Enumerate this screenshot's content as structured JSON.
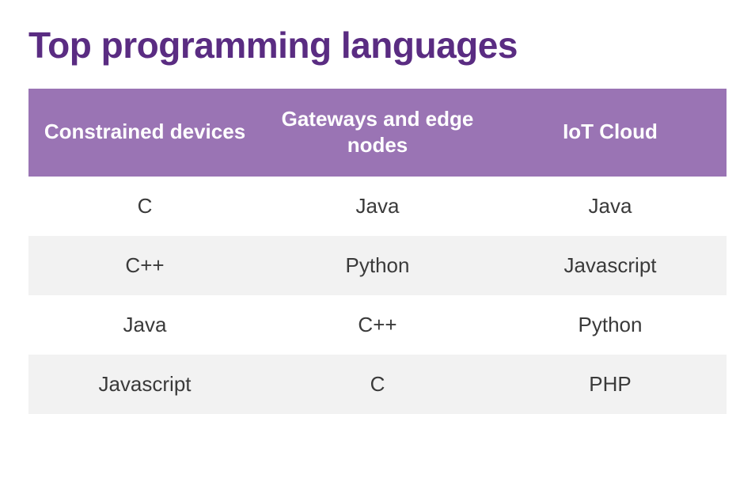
{
  "title": "Top programming languages",
  "table": {
    "type": "table",
    "header_bg": "#9a74b4",
    "header_text_color": "#ffffff",
    "row_bg_odd": "#ffffff",
    "row_bg_even": "#f2f2f2",
    "cell_text_color": "#3a3a3a",
    "title_color": "#5a2c82",
    "header_fontsize": 26,
    "cell_fontsize": 26,
    "title_fontsize": 46,
    "columns": [
      "Constrained devices",
      "Gateways and edge nodes",
      "IoT Cloud"
    ],
    "rows": [
      [
        "C",
        "Java",
        "Java"
      ],
      [
        "C++",
        "Python",
        "Javascript"
      ],
      [
        "Java",
        "C++",
        "Python"
      ],
      [
        "Javascript",
        "C",
        "PHP"
      ]
    ]
  }
}
